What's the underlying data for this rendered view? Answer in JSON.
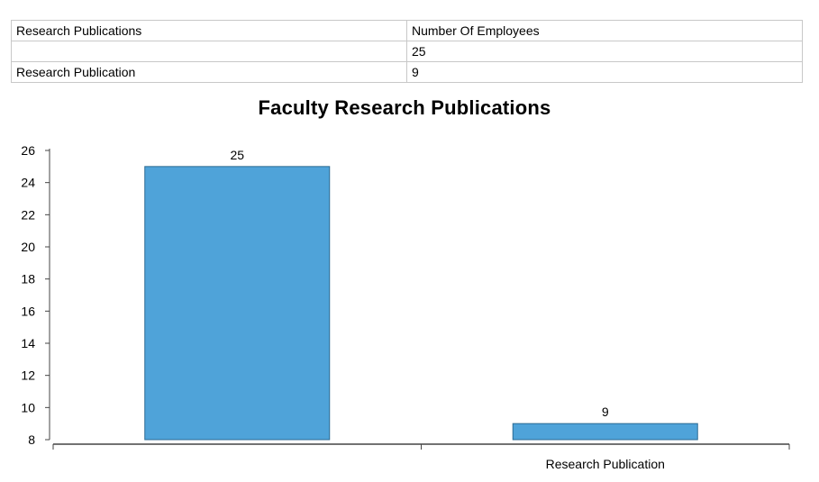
{
  "table": {
    "header": [
      "Research Publications",
      "Number Of Employees"
    ],
    "rows": [
      [
        "",
        "25"
      ],
      [
        "Research Publication",
        "9"
      ]
    ]
  },
  "chart_data": {
    "type": "bar",
    "title": "Faculty Research Publications",
    "categories": [
      "",
      "Research Publication"
    ],
    "values": [
      25,
      9
    ],
    "data_labels": [
      "25",
      "9"
    ],
    "ylim": [
      8,
      26
    ],
    "yticks": [
      8,
      10,
      12,
      14,
      16,
      18,
      20,
      22,
      24,
      26
    ],
    "xlabel": "",
    "ylabel": "",
    "grid": false,
    "legend": "none",
    "colors": {
      "bar_fill": "#4fa3d9",
      "bar_stroke": "#2b6a93",
      "axis": "#444444"
    }
  }
}
